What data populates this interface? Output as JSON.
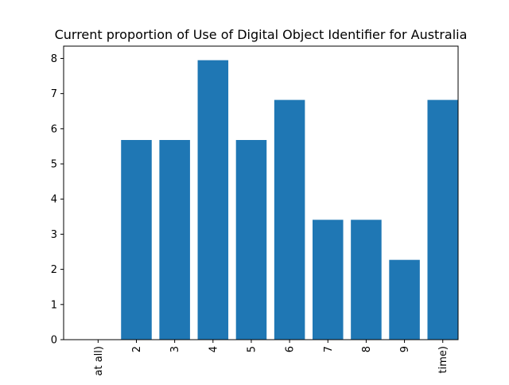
{
  "chart_data": {
    "type": "bar",
    "title": "Current proportion of Use of Digital Object Identifier for Australia",
    "xlabel": "",
    "ylabel": "",
    "categories": [
      "at all)",
      "2",
      "3",
      "4",
      "5",
      "6",
      "7",
      "8",
      "9",
      "time)"
    ],
    "values": [
      0,
      5.68,
      5.68,
      7.95,
      5.68,
      6.82,
      3.41,
      3.41,
      2.27,
      6.82
    ],
    "ylim": [
      0,
      8.35
    ],
    "yticks": [
      0,
      1,
      2,
      3,
      4,
      5,
      6,
      7,
      8
    ],
    "bar_color": "#1f77b4",
    "grid": false,
    "xtick_rotation": "vertical"
  }
}
